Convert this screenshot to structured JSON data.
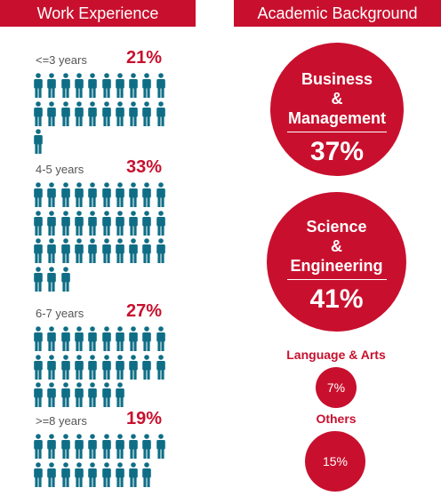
{
  "headers": {
    "left": "Work Experience",
    "right": "Academic Background"
  },
  "colors": {
    "accent": "#c8102e",
    "icon": "#0f6e86",
    "label": "#555555"
  },
  "chart_data": [
    {
      "type": "pictogram",
      "title": "Work Experience",
      "per_row": 10,
      "groups": [
        {
          "label": "<=3 years",
          "value": "21%",
          "icons": 21
        },
        {
          "label": "4-5 years",
          "value": "33%",
          "icons": 33
        },
        {
          "label": "6-7 years",
          "value": "27%",
          "icons": 27
        },
        {
          "label": ">=8 years",
          "value": "19%",
          "icons": 19
        }
      ]
    },
    {
      "type": "bubble",
      "title": "Academic Background",
      "items": [
        {
          "name_lines": [
            "Business",
            "&",
            "Management"
          ],
          "value": "37%"
        },
        {
          "name_lines": [
            "Science",
            "&",
            "Engineering"
          ],
          "value": "41%"
        },
        {
          "name": "Language & Arts",
          "value": "7%"
        },
        {
          "name": "Others",
          "value": "15%"
        }
      ]
    }
  ]
}
